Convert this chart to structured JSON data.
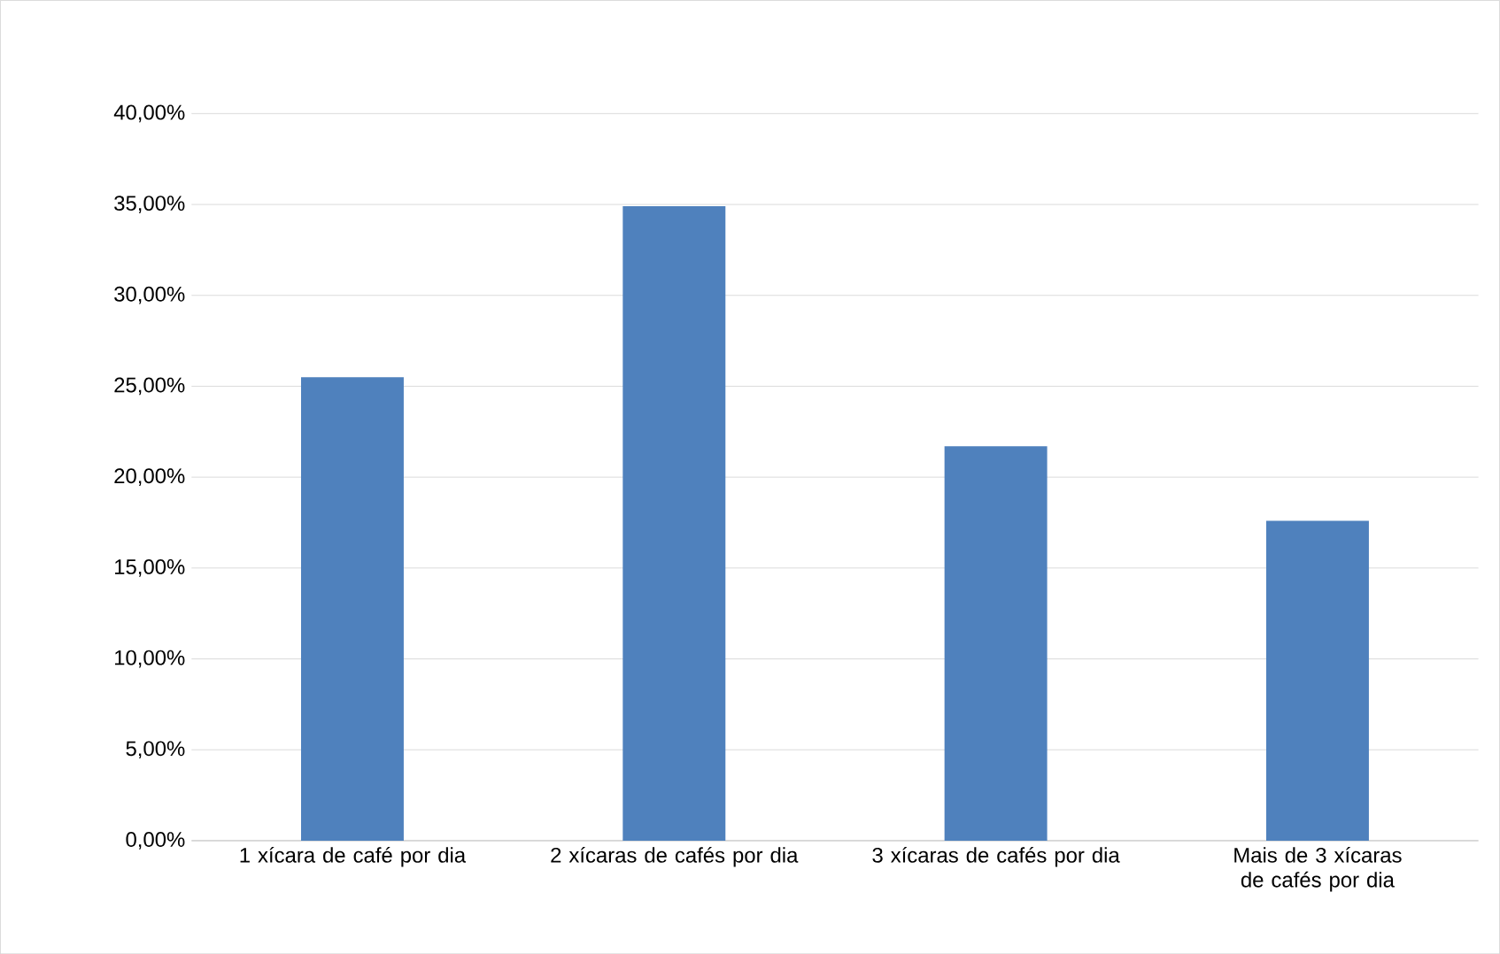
{
  "chart_data": {
    "type": "bar",
    "categories": [
      "1 xícara de café por dia",
      "2 xícaras de cafés por dia",
      "3 xícaras de cafés por dia",
      "Mais de 3 xícaras de cafés por dia"
    ],
    "values": [
      25.5,
      34.9,
      21.7,
      17.6
    ],
    "color": "#4f81bd",
    "ylim": [
      0,
      40
    ],
    "yticks": [
      {
        "value": 0,
        "label": "0,00%"
      },
      {
        "value": 5,
        "label": "5,00%"
      },
      {
        "value": 10,
        "label": "10,00%"
      },
      {
        "value": 15,
        "label": "15,00%"
      },
      {
        "value": 20,
        "label": "20,00%"
      },
      {
        "value": 25,
        "label": "25,00%"
      },
      {
        "value": 30,
        "label": "30,00%"
      },
      {
        "value": 35,
        "label": "35,00%"
      },
      {
        "value": 40,
        "label": "40,00%"
      }
    ],
    "grid": "y"
  }
}
